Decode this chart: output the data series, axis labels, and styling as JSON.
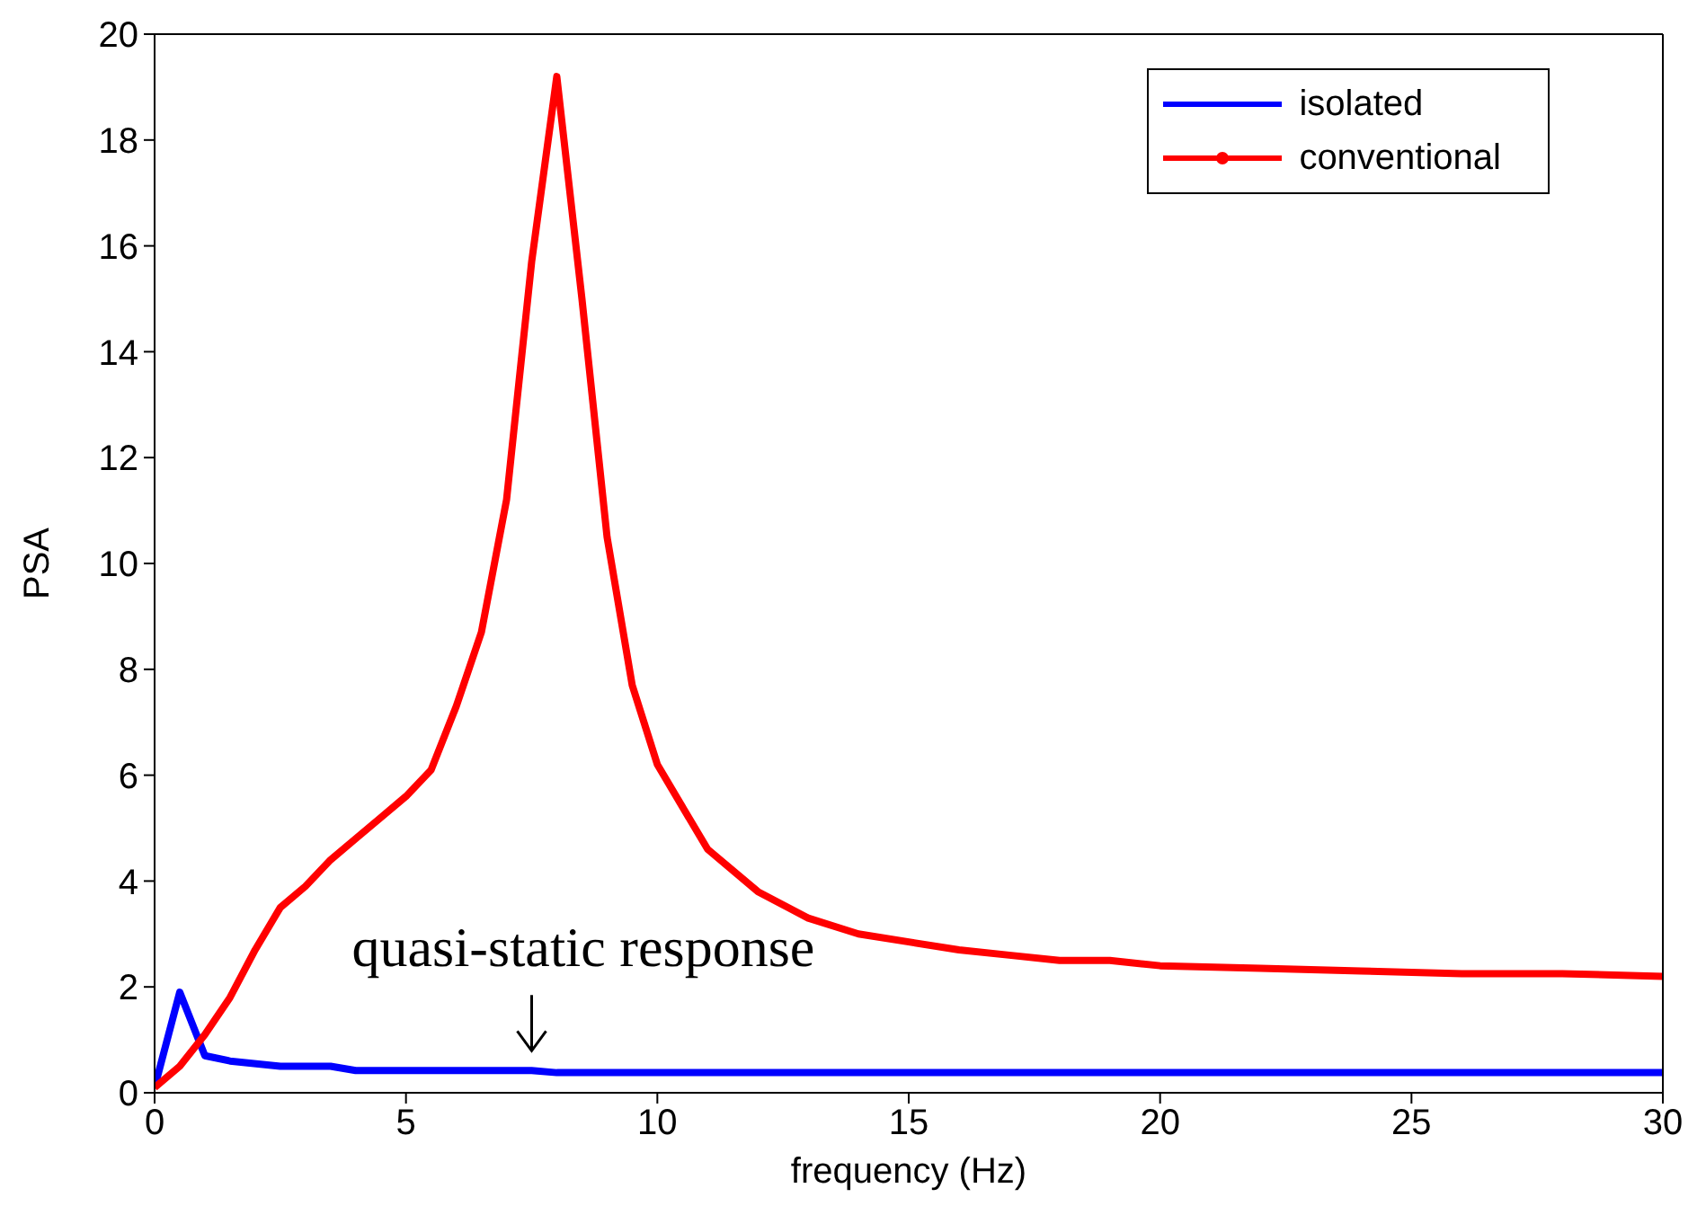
{
  "chart_data": {
    "type": "line",
    "xlabel": "frequency (Hz)",
    "ylabel": "PSA",
    "xlim": [
      0,
      30
    ],
    "xticks": [
      0,
      5,
      10,
      15,
      20,
      25,
      30
    ],
    "ylim": [
      0,
      20
    ],
    "yticks": [
      0,
      2,
      4,
      6,
      8,
      10,
      12,
      14,
      16,
      18,
      20
    ],
    "legend": "top right",
    "marker": "none",
    "line_style": "solid",
    "annotations": [
      {
        "text": "quasi-static response",
        "x": 7.5,
        "y": 0.42
      }
    ],
    "series": [
      {
        "name": "isolated",
        "color": "#0000ff",
        "x": [
          0,
          0.5,
          1,
          1.5,
          2.5,
          3.5,
          4,
          7.5,
          8,
          30
        ],
        "values": [
          0.1,
          1.9,
          0.7,
          0.6,
          0.5,
          0.5,
          0.42,
          0.42,
          0.38,
          0.38
        ]
      },
      {
        "name": "conventional",
        "color": "#ff0000",
        "x": [
          0,
          0.5,
          1,
          1.5,
          2,
          2.5,
          3,
          3.5,
          4,
          4.5,
          5,
          5.5,
          6,
          6.5,
          7,
          7.5,
          8,
          8.5,
          9,
          9.5,
          10,
          11,
          12,
          13,
          14,
          15,
          16,
          17,
          18,
          19,
          20,
          22,
          24,
          26,
          28,
          30
        ],
        "values": [
          0.1,
          0.5,
          1.1,
          1.8,
          2.7,
          3.5,
          3.9,
          4.4,
          4.8,
          5.2,
          5.6,
          6.1,
          7.3,
          8.7,
          11.2,
          15.7,
          19.2,
          15,
          10.5,
          7.7,
          6.2,
          4.6,
          3.8,
          3.3,
          3.0,
          2.85,
          2.7,
          2.6,
          2.5,
          2.5,
          2.4,
          2.35,
          2.3,
          2.25,
          2.25,
          2.2
        ]
      }
    ]
  }
}
